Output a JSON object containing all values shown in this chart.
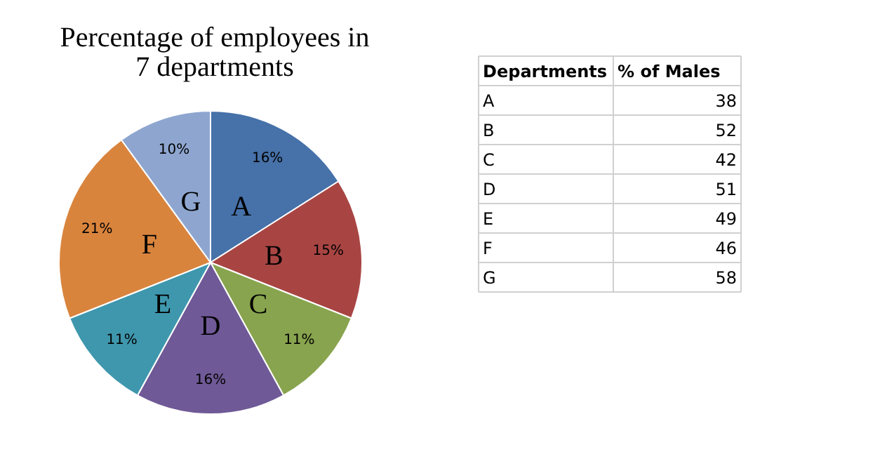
{
  "chart_data": [
    {
      "type": "pie",
      "title": "Percentage of employees in 7 departments",
      "categories": [
        "A",
        "B",
        "C",
        "D",
        "E",
        "F",
        "G"
      ],
      "values": [
        16,
        15,
        11,
        16,
        11,
        21,
        10
      ],
      "colors": [
        "#4671a9",
        "#a84543",
        "#88a44e",
        "#6f5996",
        "#3f97ad",
        "#d9843d",
        "#8ea6cf"
      ],
      "value_labels": [
        "16%",
        "15%",
        "11%",
        "16%",
        "11%",
        "21%",
        "10%"
      ],
      "legend": false
    },
    {
      "type": "other",
      "xlabel": "Departments",
      "ylabel": "% of Males",
      "categories": [
        "A",
        "B",
        "C",
        "D",
        "E",
        "F",
        "G"
      ],
      "values": [
        38,
        52,
        42,
        51,
        49,
        46,
        58
      ],
      "data_labels": true
    }
  ]
}
